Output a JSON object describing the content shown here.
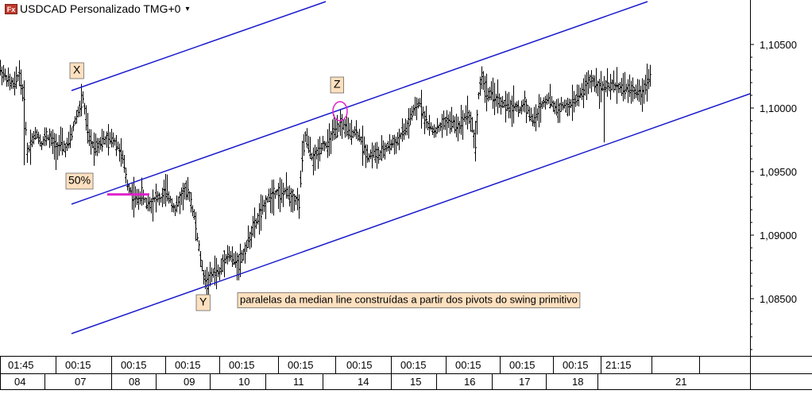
{
  "header": {
    "icon_text": "Fx",
    "title": "USDCAD Personalizado TMG+0",
    "dropdown_icon": "chevron-down-icon"
  },
  "chart_data": {
    "type": "line",
    "style": "ohlc-bars",
    "symbol": "USDCAD",
    "y_ticks": [
      "1,10500",
      "1,10000",
      "1,09500",
      "1,09000",
      "1,08500"
    ],
    "y_tick_values": [
      1.105,
      1.1,
      1.095,
      1.09,
      1.085
    ],
    "ylim": [
      1.0805,
      1.1085
    ],
    "grid": false,
    "time_labels": [
      "01:45",
      "00:15",
      "00:15",
      "00:15",
      "00:15",
      "00:15",
      "00:15",
      "00:15",
      "00:15",
      "00:15",
      "00:15",
      "21:15"
    ],
    "date_labels": [
      "04",
      "07",
      "08",
      "09",
      "10",
      "11",
      "14",
      "15",
      "16",
      "17",
      "18",
      "21"
    ],
    "price_path": [
      [
        0,
        1.103
      ],
      [
        6,
        1.1025
      ],
      [
        12,
        1.102
      ],
      [
        18,
        1.1018
      ],
      [
        24,
        1.1028
      ],
      [
        30,
        1.1005
      ],
      [
        34,
        1.0965
      ],
      [
        40,
        1.0975
      ],
      [
        46,
        1.098
      ],
      [
        52,
        1.0972
      ],
      [
        58,
        1.0978
      ],
      [
        64,
        1.0975
      ],
      [
        70,
        1.0968
      ],
      [
        76,
        1.0972
      ],
      [
        82,
        1.0968
      ],
      [
        88,
        1.0975
      ],
      [
        94,
        1.099
      ],
      [
        100,
        1.1
      ],
      [
        104,
        1.1008
      ],
      [
        108,
        1.099
      ],
      [
        112,
        1.0975
      ],
      [
        118,
        1.097
      ],
      [
        124,
        1.0972
      ],
      [
        130,
        1.0975
      ],
      [
        136,
        1.0974
      ],
      [
        142,
        1.0976
      ],
      [
        148,
        1.097
      ],
      [
        154,
        1.096
      ],
      [
        160,
        1.094
      ],
      [
        166,
        1.0932
      ],
      [
        172,
        1.0928
      ],
      [
        178,
        1.0932
      ],
      [
        184,
        1.0925
      ],
      [
        190,
        1.0925
      ],
      [
        196,
        1.093
      ],
      [
        202,
        1.0928
      ],
      [
        208,
        1.0935
      ],
      [
        214,
        1.0928
      ],
      [
        220,
        1.092
      ],
      [
        226,
        1.0928
      ],
      [
        232,
        1.0935
      ],
      [
        238,
        1.0932
      ],
      [
        244,
        1.0915
      ],
      [
        250,
        1.089
      ],
      [
        255,
        1.087
      ],
      [
        260,
        1.0862
      ],
      [
        264,
        1.0866
      ],
      [
        270,
        1.0872
      ],
      [
        276,
        1.087
      ],
      [
        282,
        1.0882
      ],
      [
        288,
        1.0885
      ],
      [
        294,
        1.088
      ],
      [
        300,
        1.0878
      ],
      [
        306,
        1.0885
      ],
      [
        312,
        1.0895
      ],
      [
        318,
        1.0905
      ],
      [
        324,
        1.0912
      ],
      [
        330,
        1.092
      ],
      [
        336,
        1.0928
      ],
      [
        342,
        1.0932
      ],
      [
        348,
        1.0934
      ],
      [
        354,
        1.0932
      ],
      [
        360,
        1.0935
      ],
      [
        366,
        1.093
      ],
      [
        372,
        1.0928
      ],
      [
        376,
        1.0925
      ],
      [
        380,
        1.096
      ],
      [
        384,
        1.0978
      ],
      [
        388,
        1.097
      ],
      [
        394,
        1.0958
      ],
      [
        400,
        1.0966
      ],
      [
        406,
        1.0972
      ],
      [
        412,
        1.097
      ],
      [
        418,
        1.098
      ],
      [
        424,
        1.0982
      ],
      [
        428,
        1.0988
      ],
      [
        434,
        1.0985
      ],
      [
        440,
        1.098
      ],
      [
        446,
        1.0982
      ],
      [
        452,
        1.0978
      ],
      [
        458,
        1.0968
      ],
      [
        464,
        1.0962
      ],
      [
        470,
        1.0965
      ],
      [
        476,
        1.0962
      ],
      [
        482,
        1.0966
      ],
      [
        488,
        1.097
      ],
      [
        494,
        1.0972
      ],
      [
        500,
        1.0974
      ],
      [
        506,
        1.098
      ],
      [
        512,
        1.0985
      ],
      [
        518,
        1.0995
      ],
      [
        524,
        1.1
      ],
      [
        528,
        1.1005
      ],
      [
        534,
        1.0992
      ],
      [
        540,
        1.0985
      ],
      [
        546,
        1.0982
      ],
      [
        552,
        1.0984
      ],
      [
        558,
        1.0988
      ],
      [
        564,
        1.099
      ],
      [
        570,
        1.0988
      ],
      [
        576,
        1.0985
      ],
      [
        582,
        1.099
      ],
      [
        588,
        1.0998
      ],
      [
        594,
        1.0985
      ],
      [
        598,
        1.097
      ],
      [
        602,
        1.101
      ],
      [
        606,
        1.1025
      ],
      [
        612,
        1.1012
      ],
      [
        618,
        1.101
      ],
      [
        624,
        1.1008
      ],
      [
        630,
        1.1004
      ],
      [
        636,
        1.1002
      ],
      [
        642,
        1.1
      ],
      [
        648,
        1.1002
      ],
      [
        654,
        1.0998
      ],
      [
        660,
        1.1005
      ],
      [
        666,
        1.0995
      ],
      [
        672,
        1.099
      ],
      [
        678,
        1.0998
      ],
      [
        684,
        1.1005
      ],
      [
        690,
        1.1008
      ],
      [
        696,
        1.1002
      ],
      [
        702,
        1.0998
      ],
      [
        708,
        1.1002
      ],
      [
        714,
        1.1
      ],
      [
        720,
        1.1004
      ],
      [
        726,
        1.1008
      ],
      [
        732,
        1.1012
      ],
      [
        738,
        1.1018
      ],
      [
        744,
        1.1022
      ],
      [
        750,
        1.102
      ],
      [
        756,
        1.1015
      ],
      [
        760,
        1.1018
      ],
      [
        766,
        1.1016
      ],
      [
        772,
        1.1018
      ],
      [
        778,
        1.1017
      ],
      [
        784,
        1.1016
      ],
      [
        790,
        1.1015
      ],
      [
        796,
        1.1014
      ],
      [
        802,
        1.1012
      ],
      [
        806,
        1.101
      ],
      [
        810,
        1.1015
      ],
      [
        814,
        1.1022
      ],
      [
        818,
        1.1025
      ]
    ],
    "pivots": [
      {
        "label": "X",
        "i": 104,
        "price": 1.1008
      },
      {
        "label": "Y",
        "i": 260,
        "price": 1.0858
      },
      {
        "label": "Z",
        "i": 428,
        "price": 1.099
      }
    ],
    "fib_label": "50%",
    "fib_price": 1.0932,
    "annotation": "paralelas da median line construídas a partir dos pivots do swing primitivo",
    "colors": {
      "channel": "#1a1acc",
      "fib": "#e020c8",
      "label_bg": "#fde0bf",
      "bars": "#000000"
    }
  }
}
